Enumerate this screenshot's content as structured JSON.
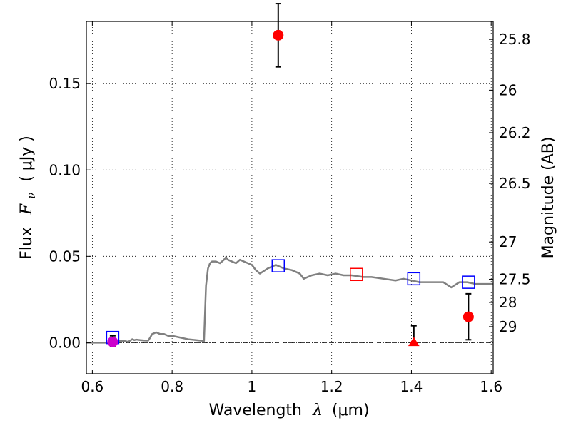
{
  "chart_data": {
    "type": "scatter",
    "xlabel": "Wavelength",
    "xlabel_symbol": "λ",
    "xlabel_unit": "(μm)",
    "ylabel": "Flux",
    "ylabel_symbol": "F",
    "ylabel_subscript": "ν",
    "ylabel_unit": "( μJy )",
    "y2label": "Magnitude (AB)",
    "xlim": [
      0.585,
      1.605
    ],
    "ylim": [
      -0.018,
      0.186
    ],
    "grid": true,
    "x_ticks": [
      0.6,
      0.8,
      1.0,
      1.2,
      1.4,
      1.6
    ],
    "x_tick_labels": [
      "0.6",
      "0.8",
      "1",
      "1.2",
      "1.4",
      "1.6"
    ],
    "y_ticks": [
      0.0,
      0.05,
      0.1,
      0.15
    ],
    "y_tick_labels": [
      "0.00",
      "0.05",
      "0.10",
      "0.15"
    ],
    "y2_ticks": [
      {
        "label": "25.8",
        "flux": 0.1756
      },
      {
        "label": "26",
        "flux": 0.1462
      },
      {
        "label": "26.2",
        "flux": 0.1216
      },
      {
        "label": "26.5",
        "flux": 0.0922
      },
      {
        "label": "27",
        "flux": 0.0583
      },
      {
        "label": "27.5",
        "flux": 0.0367
      },
      {
        "label": "28",
        "flux": 0.0233
      },
      {
        "label": "29",
        "flux": 0.0093
      }
    ],
    "zero_line": true,
    "series": [
      {
        "kind": "line",
        "color": "#808080",
        "x": [
          0.585,
          0.6,
          0.62,
          0.64,
          0.66,
          0.68,
          0.69,
          0.7,
          0.705,
          0.71,
          0.72,
          0.73,
          0.74,
          0.745,
          0.75,
          0.76,
          0.77,
          0.78,
          0.79,
          0.8,
          0.82,
          0.84,
          0.86,
          0.88,
          0.885,
          0.89,
          0.895,
          0.9,
          0.91,
          0.92,
          0.925,
          0.93,
          0.935,
          0.94,
          0.95,
          0.96,
          0.97,
          0.98,
          0.99,
          1.0,
          1.01,
          1.02,
          1.04,
          1.06,
          1.08,
          1.1,
          1.12,
          1.13,
          1.15,
          1.17,
          1.19,
          1.21,
          1.23,
          1.25,
          1.28,
          1.3,
          1.33,
          1.36,
          1.38,
          1.4,
          1.42,
          1.44,
          1.46,
          1.48,
          1.5,
          1.52,
          1.54,
          1.56,
          1.58,
          1.605
        ],
        "y": [
          0.0,
          0.0,
          0.0,
          0.0,
          0.001,
          0.001,
          0.0005,
          0.002,
          0.0015,
          0.0018,
          0.0015,
          0.0013,
          0.0012,
          0.003,
          0.005,
          0.006,
          0.005,
          0.005,
          0.004,
          0.004,
          0.003,
          0.002,
          0.0015,
          0.001,
          0.033,
          0.043,
          0.046,
          0.047,
          0.047,
          0.046,
          0.047,
          0.048,
          0.0495,
          0.048,
          0.047,
          0.046,
          0.048,
          0.047,
          0.046,
          0.045,
          0.042,
          0.04,
          0.043,
          0.045,
          0.043,
          0.042,
          0.04,
          0.037,
          0.039,
          0.04,
          0.039,
          0.04,
          0.039,
          0.039,
          0.038,
          0.038,
          0.037,
          0.036,
          0.037,
          0.036,
          0.035,
          0.035,
          0.035,
          0.035,
          0.032,
          0.035,
          0.035,
          0.034,
          0.034,
          0.034
        ]
      },
      {
        "kind": "squares",
        "color": "#0000ff",
        "x": [
          0.651,
          1.066,
          1.406,
          1.543
        ],
        "y": [
          0.003,
          0.0445,
          0.037,
          0.035
        ]
      },
      {
        "kind": "squares",
        "color": "#ff0000",
        "x": [
          1.262
        ],
        "y": [
          0.0395
        ]
      },
      {
        "kind": "circles",
        "color": "#ff0000",
        "x": [
          1.066,
          1.543
        ],
        "y": [
          0.178,
          0.015
        ],
        "err_low": [
          0.0183,
          0.0133
        ],
        "err_high": [
          0.0183,
          0.0133
        ]
      },
      {
        "kind": "circles",
        "color": "#cc00cc",
        "x": [
          0.651
        ],
        "y": [
          0.0005
        ],
        "err_low": [
          0.0025
        ],
        "err_high": [
          0.0035
        ]
      },
      {
        "kind": "triangles",
        "color": "#ff0000",
        "x": [
          1.406
        ],
        "y": [
          0.0
        ],
        "err_low": [
          0.0
        ],
        "err_high": [
          0.0098
        ]
      }
    ]
  }
}
